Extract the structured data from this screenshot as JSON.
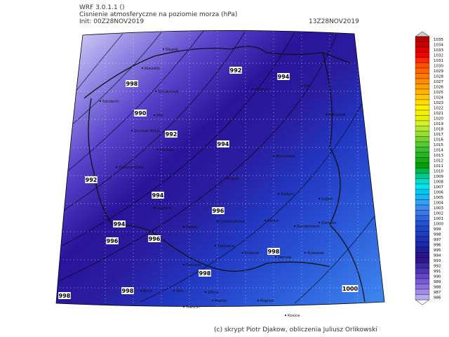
{
  "header": {
    "model": "WRF 3.0.1.1 ()",
    "title": "Cisnienie atmosferyczne na poziomie morza (hPa)",
    "init": "Init: 00Z28NOV2019",
    "valid": "13Z28NOV2019"
  },
  "footer": "(c) skrypt Piotr Djakow, obliczenia Juliusz Orlikowski",
  "colorbar": {
    "levels": [
      1035,
      1034,
      1033,
      1032,
      1031,
      1030,
      1029,
      1028,
      1027,
      1026,
      1025,
      1024,
      1023,
      1022,
      1021,
      1020,
      1019,
      1018,
      1017,
      1016,
      1015,
      1014,
      1013,
      1012,
      1011,
      1010,
      1009,
      1008,
      1007,
      1006,
      1005,
      1004,
      1003,
      1002,
      1001,
      1000,
      999,
      998,
      997,
      996,
      995,
      994,
      993,
      992,
      991,
      990,
      989,
      988,
      987,
      986
    ],
    "colors": [
      "#b40000",
      "#c80000",
      "#dc0000",
      "#f00000",
      "#ff2800",
      "#ff5000",
      "#ff6400",
      "#ff7800",
      "#ff8c00",
      "#ffa000",
      "#ffb400",
      "#ffc800",
      "#ffdc00",
      "#fff000",
      "#f0f000",
      "#e6f000",
      "#d2f032",
      "#b4e632",
      "#96dc32",
      "#78d232",
      "#5ac832",
      "#3cbe32",
      "#28b428",
      "#14aa14",
      "#00a000",
      "#00b450",
      "#00c88c",
      "#00dcc8",
      "#00e6f0",
      "#00c8f0",
      "#1eb4f0",
      "#32a0f0",
      "#3c8cf0",
      "#3c78e6",
      "#3264dc",
      "#2850d2",
      "#2046c8",
      "#1e3cbe",
      "#1e32b4",
      "#1e28aa",
      "#1e1e96",
      "#28148c",
      "#32148c",
      "#3c28a0",
      "#5032b4",
      "#6446c8",
      "#785ad2",
      "#8c6edc",
      "#a08ce6",
      "#b4aaf0"
    ]
  },
  "isobar_labels": [
    998,
    990,
    992,
    994,
    992,
    994,
    992,
    994,
    996,
    994,
    996,
    996,
    998,
    998,
    998,
    998,
    1000
  ],
  "cities": [
    "Slupsk",
    "Koszalin",
    "Szczecinek",
    "Szczecin",
    "Pila",
    "Gorzow Wlkp.",
    "Poznan",
    "Zielona Gora",
    "Legnica",
    "Opole",
    "Czestochowa",
    "Kielce",
    "Sandomierz",
    "Zamosc",
    "Lublin",
    "Radom",
    "Warszawa",
    "Lodz",
    "Bialystok",
    "Elk",
    "Olsztyn",
    "Katowice",
    "Krakow",
    "Tarnow",
    "Rzeszow",
    "Ostrava",
    "Brno",
    "Zlin",
    "Zilina",
    "Martin",
    "Poprad",
    "Kosice",
    "Trencin"
  ]
}
